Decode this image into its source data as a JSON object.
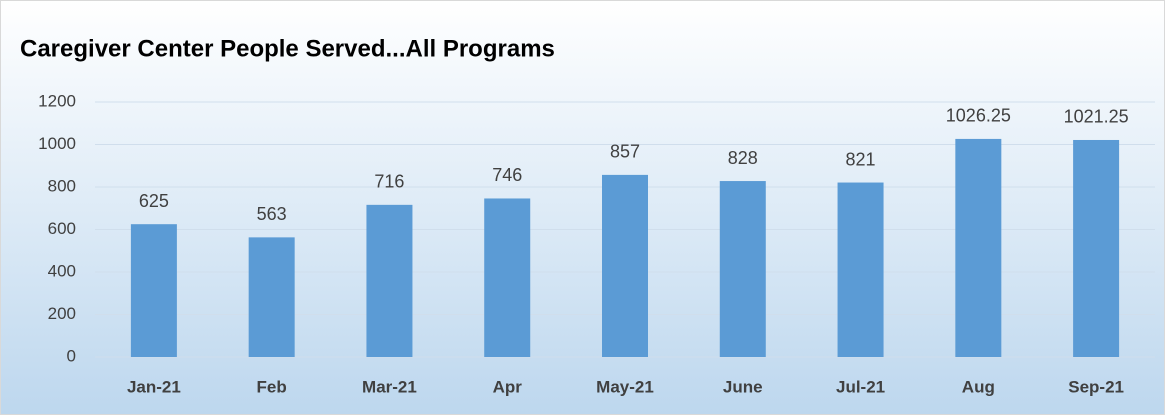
{
  "chart_data": {
    "type": "bar",
    "title": "Caregiver Center People Served...All Programs",
    "categories": [
      "Jan-21",
      "Feb",
      "Mar-21",
      "Apr",
      "May-21",
      "June",
      "Jul-21",
      "Aug",
      "Sep-21"
    ],
    "values": [
      625,
      563,
      716,
      746,
      857,
      828,
      821,
      1026.25,
      1021.25
    ],
    "color": "#5b9bd5",
    "ylim": [
      0,
      1200
    ],
    "yticks": [
      0,
      200,
      400,
      600,
      800,
      1000,
      1200
    ],
    "grid": true
  }
}
